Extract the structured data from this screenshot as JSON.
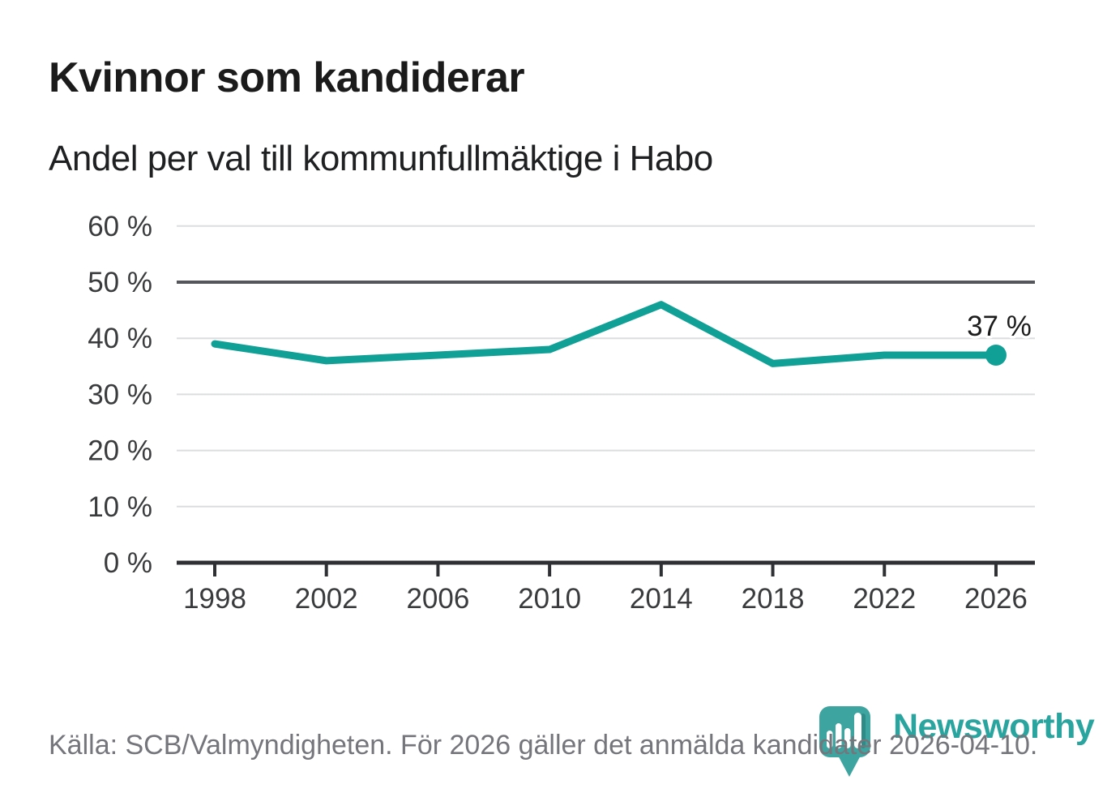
{
  "header": {
    "title": "Kvinnor som kandiderar",
    "subtitle": "Andel per val till kommunfullmäktige i Habo"
  },
  "chart_data": {
    "type": "line",
    "title": "Kvinnor som kandiderar",
    "subtitle": "Andel per val till kommunfullmäktige i Habo",
    "categories": [
      "1998",
      "2002",
      "2006",
      "2010",
      "2014",
      "2018",
      "2022",
      "2026"
    ],
    "values": [
      39,
      36,
      37,
      38,
      46,
      35.5,
      37,
      37
    ],
    "unit": "%",
    "end_label": "37 %",
    "ylim": [
      0,
      60
    ],
    "ytick_step": 10,
    "ytick_labels": [
      "0 %",
      "10 %",
      "20 %",
      "30 %",
      "40 %",
      "50 %",
      "60 %"
    ],
    "grid": "horizontal",
    "emphasized_gridline": 50,
    "legend": "none"
  },
  "footer": {
    "source": "Källa: SCB/Valmyndigheten. För 2026 gäller det anmälda kandidater 2026-04-10.",
    "brand": "Newsworthy"
  },
  "colors": {
    "line": "#11a096",
    "gridline": "#dcdddf",
    "gridline_emphasis": "#54565c",
    "axis": "#2f3033",
    "axis_label": "#3a3b3d",
    "value_label": "#1c1c1c",
    "title": "#1b1b1b",
    "subtitle": "#1f2022",
    "source_text": "#75757c",
    "logo": "#3da49f",
    "logo_wordmark": "#2aa49e",
    "background": "#ffffff"
  }
}
